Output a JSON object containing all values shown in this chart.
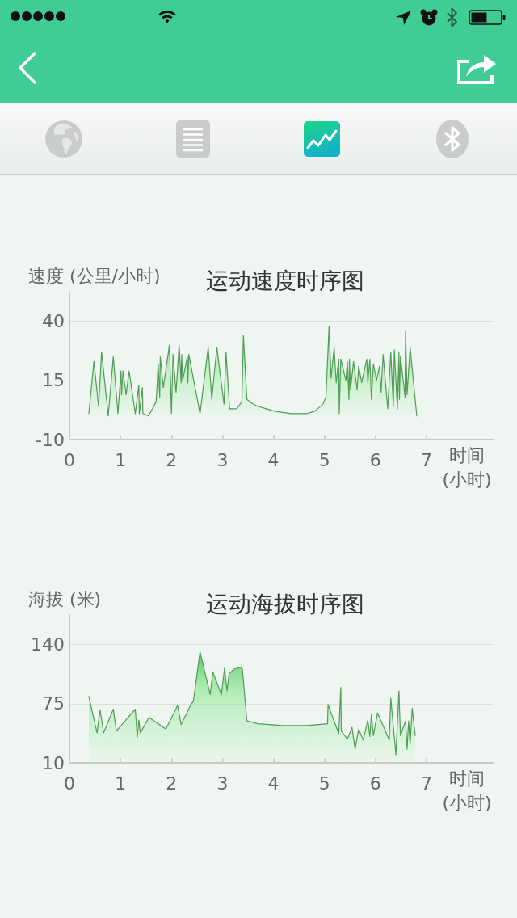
{
  "chart_data": [
    {
      "type": "area",
      "title": "运动速度时序图",
      "ylabel": "速度 (公里/小时)",
      "xlabel": "时间 (小时)",
      "color": "#4f9d55",
      "marker": "none",
      "grid": "y",
      "xlim": [
        0,
        8.3
      ],
      "xticks": [
        0,
        1,
        2,
        3,
        4,
        5,
        6,
        7
      ],
      "ylim": [
        -10,
        52.5
      ],
      "yticks": [
        -10,
        15,
        40
      ],
      "x": [
        0.38,
        0.48,
        0.57,
        0.63,
        0.76,
        0.86,
        0.95,
        1.01,
        1.02,
        1.05,
        1.11,
        1.17,
        1.29,
        1.36,
        1.37,
        1.43,
        1.44,
        1.55,
        1.7,
        1.74,
        1.77,
        1.78,
        1.84,
        1.96,
        2.0,
        2.03,
        2.09,
        2.15,
        2.19,
        2.2,
        2.22,
        2.31,
        2.32,
        2.34,
        2.56,
        2.72,
        2.79,
        2.89,
        3.03,
        3.07,
        3.14,
        3.2,
        3.28,
        3.38,
        3.41,
        3.48,
        3.6,
        3.7,
        3.86,
        4.02,
        4.34,
        4.66,
        4.81,
        4.97,
        5.03,
        5.09,
        5.13,
        5.19,
        5.23,
        5.28,
        5.29,
        5.32,
        5.42,
        5.45,
        5.48,
        5.49,
        5.51,
        5.57,
        5.64,
        5.67,
        5.73,
        5.83,
        5.85,
        5.89,
        5.92,
        5.96,
        6.02,
        6.08,
        6.11,
        6.15,
        6.24,
        6.3,
        6.35,
        6.37,
        6.43,
        6.46,
        6.47,
        6.49,
        6.58,
        6.59,
        6.62,
        6.68,
        6.81
      ],
      "values": [
        1,
        23,
        4,
        27,
        0,
        25,
        1,
        19,
        9,
        19,
        9,
        19,
        1,
        13,
        1,
        12,
        1,
        0,
        6,
        22,
        8,
        25,
        12,
        30,
        1,
        26,
        10,
        30,
        14,
        26,
        15,
        25,
        14,
        26,
        1,
        29,
        7,
        29,
        5,
        27,
        3,
        3,
        3,
        6,
        34,
        7,
        5,
        4,
        3,
        2,
        1,
        1,
        2,
        5,
        8,
        38,
        16,
        29,
        14,
        24,
        1,
        24,
        15,
        23,
        7,
        24,
        11,
        23,
        11,
        21,
        14,
        24,
        14,
        24,
        7,
        22,
        15,
        21,
        10,
        26,
        3,
        27,
        4,
        28,
        3,
        27,
        7,
        25,
        8,
        36,
        9,
        29,
        0
      ]
    },
    {
      "type": "area",
      "title": "运动海拔时序图",
      "ylabel": "海拔 (米)",
      "xlabel": "时间 (小时)",
      "color": "#4f9d55",
      "marker": "none",
      "grid": "y",
      "xlim": [
        0,
        8.3
      ],
      "xticks": [
        0,
        1,
        2,
        3,
        4,
        5,
        6,
        7
      ],
      "ylim": [
        10,
        172.5
      ],
      "yticks": [
        10,
        75,
        140
      ],
      "x": [
        0.38,
        0.54,
        0.6,
        0.67,
        0.86,
        0.92,
        1.29,
        1.33,
        1.36,
        1.39,
        1.56,
        1.89,
        2.12,
        2.19,
        2.38,
        2.43,
        2.56,
        2.76,
        2.81,
        2.98,
        3.04,
        3.09,
        3.13,
        3.23,
        3.36,
        3.39,
        3.48,
        3.7,
        4.18,
        4.66,
        5.06,
        5.07,
        5.28,
        5.32,
        5.33,
        5.45,
        5.54,
        5.6,
        5.67,
        5.76,
        5.85,
        5.89,
        5.92,
        5.96,
        6.04,
        6.27,
        6.3,
        6.4,
        6.46,
        6.49,
        6.59,
        6.62,
        6.65,
        6.68,
        6.72,
        6.78
      ],
      "values": [
        83,
        43,
        68,
        43,
        69,
        45,
        69,
        38,
        57,
        43,
        60,
        47,
        73,
        52,
        74,
        78,
        132,
        85,
        110,
        85,
        114,
        89,
        108,
        113,
        115,
        113,
        56,
        53,
        51,
        51,
        53,
        74,
        42,
        93,
        45,
        36,
        49,
        25,
        47,
        35,
        57,
        39,
        63,
        40,
        65,
        35,
        81,
        19,
        89,
        40,
        56,
        25,
        56,
        30,
        70,
        40
      ]
    }
  ]
}
